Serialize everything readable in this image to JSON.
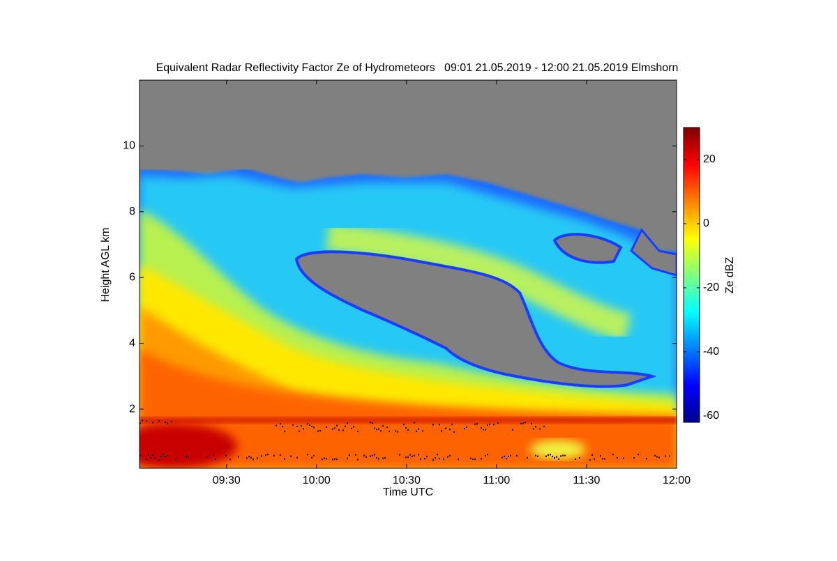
{
  "chart_data": {
    "type": "heatmap",
    "title": "Equivalent Radar Reflectivity Factor Ze of Hydrometeors   09:01 21.05.2019 - 12:00 21.05.2019 Elmshorn",
    "xlabel": "Time UTC",
    "ylabel": "Height AGL km",
    "xlim": [
      541,
      720
    ],
    "xticks": [
      {
        "value": 570,
        "label": "09:30"
      },
      {
        "value": 600,
        "label": "10:00"
      },
      {
        "value": 630,
        "label": "10:30"
      },
      {
        "value": 660,
        "label": "11:00"
      },
      {
        "value": 690,
        "label": "11:30"
      },
      {
        "value": 720,
        "label": "12:00"
      }
    ],
    "ylim": [
      0.2,
      12
    ],
    "yticks": [
      2,
      4,
      6,
      8,
      10
    ],
    "background": "#808080",
    "colorbar": {
      "label": "Ze dBZ",
      "lim": [
        -62,
        30
      ],
      "ticks": [
        -60,
        -40,
        -20,
        0,
        20
      ],
      "colormap": [
        "#00008f",
        "#0000ff",
        "#0080ff",
        "#00ffff",
        "#80ff80",
        "#ffff00",
        "#ff8000",
        "#ff0000",
        "#800000"
      ]
    }
  }
}
